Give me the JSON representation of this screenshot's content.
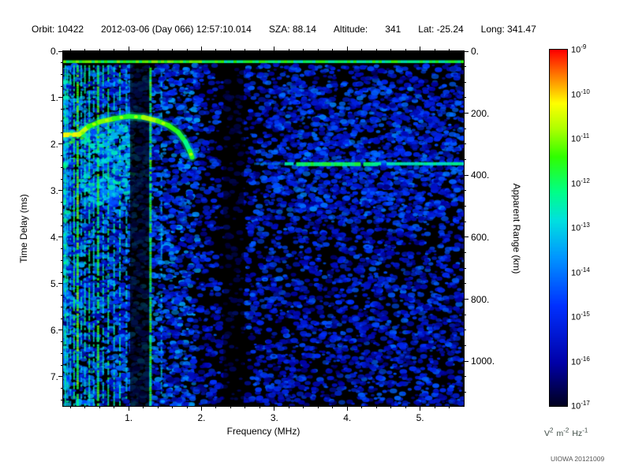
{
  "header": {
    "fields": [
      {
        "text": "Orbit: 10422"
      },
      {
        "text": "2012-03-06 (Day 066) 12:57:10.014"
      },
      {
        "text": "SZA: 88.14"
      },
      {
        "text": "Altitude:"
      },
      {
        "text": "341"
      },
      {
        "text": "Lat: -25.24"
      },
      {
        "text": "Long: 341.47"
      }
    ]
  },
  "axes": {
    "x": {
      "label": "Frequency (MHz)",
      "min": 0.1,
      "max": 5.6,
      "ticks": [
        1,
        2,
        3,
        4,
        5
      ],
      "tick_labels": [
        "1.",
        "2.",
        "3.",
        "4.",
        "5."
      ],
      "minor_step": 0.2
    },
    "y_left": {
      "label": "Time Delay (ms)",
      "min": 0,
      "max": 7.63,
      "ticks": [
        0,
        1,
        2,
        3,
        4,
        5,
        6,
        7
      ],
      "tick_labels": [
        "0.",
        "1.",
        "2.",
        "3.",
        "4.",
        "5.",
        "6.",
        "7."
      ],
      "minor_step": 0.25
    },
    "y_right": {
      "label": "Apparent Range (km)",
      "km_per_ms": 150,
      "ticks_km": [
        0,
        200,
        400,
        600,
        800,
        1000
      ],
      "tick_labels": [
        "0.",
        "200.",
        "400.",
        "600.",
        "800.",
        "1000."
      ],
      "minor_step_km": 50
    }
  },
  "colorbar": {
    "base": "10",
    "exponents": [
      -9,
      -10,
      -11,
      -12,
      -13,
      -14,
      -15,
      -16,
      -17
    ],
    "units": [
      [
        "V",
        "2"
      ],
      [
        "m",
        "-2"
      ],
      [
        "Hz",
        "-1"
      ]
    ],
    "colormap": [
      [
        0.0,
        "#000020"
      ],
      [
        0.12,
        "#0000A8"
      ],
      [
        0.28,
        "#0030FF"
      ],
      [
        0.42,
        "#0098FF"
      ],
      [
        0.52,
        "#00E0E0"
      ],
      [
        0.6,
        "#00FF88"
      ],
      [
        0.7,
        "#30FF00"
      ],
      [
        0.78,
        "#B0FF00"
      ],
      [
        0.85,
        "#FFFF00"
      ],
      [
        0.93,
        "#FF7800"
      ],
      [
        1.0,
        "#FF0000"
      ]
    ]
  },
  "footer": {
    "watermark": "UIOWA 20121009"
  },
  "chart_data": {
    "type": "heatmap",
    "description": "Radar sounder ionogram: received spectral density vs frequency and time delay",
    "x_label": "Frequency (MHz)",
    "x_range_mhz": [
      0.1,
      5.6
    ],
    "y_label": "Time Delay (ms)",
    "y_range_ms": [
      0,
      7.63
    ],
    "z_label": "V^2 m^-2 Hz^-1",
    "z_range_exp": [
      -17,
      -9
    ],
    "features": {
      "transmit_pulse": {
        "delay_ms": 0.22,
        "f_start": 0.1,
        "f_end": 5.6,
        "intensity": 0.62
      },
      "ionospheric_trace": {
        "intensity": 0.72,
        "points_f_ms": [
          [
            0.1,
            1.8
          ],
          [
            0.32,
            1.79
          ],
          [
            0.45,
            1.62
          ],
          [
            0.6,
            1.52
          ],
          [
            0.8,
            1.45
          ],
          [
            1.0,
            1.4
          ],
          [
            1.2,
            1.42
          ],
          [
            1.4,
            1.5
          ],
          [
            1.55,
            1.6
          ],
          [
            1.68,
            1.74
          ],
          [
            1.78,
            1.95
          ],
          [
            1.84,
            2.15
          ],
          [
            1.87,
            2.28
          ]
        ]
      },
      "surface_reflection": {
        "delay_ms": 2.42,
        "f_start": 3.1,
        "f_end": 5.6,
        "faint_start": 2.72,
        "intensity": 0.56
      },
      "stripes": [
        [
          0.13,
          0.55,
          0.85,
          2
        ],
        [
          0.16,
          0.5,
          0.7,
          2
        ],
        [
          0.2,
          0.48,
          0.6,
          2
        ],
        [
          0.25,
          0.62,
          0.8,
          2
        ],
        [
          0.3,
          0.68,
          0.85,
          3
        ],
        [
          0.35,
          0.5,
          0.6,
          2
        ],
        [
          0.4,
          0.55,
          0.7,
          2
        ],
        [
          0.46,
          0.6,
          0.75,
          2
        ],
        [
          0.52,
          0.55,
          0.6,
          2
        ],
        [
          0.58,
          0.65,
          0.8,
          3
        ],
        [
          0.65,
          0.55,
          0.6,
          2
        ],
        [
          0.72,
          0.6,
          0.7,
          2
        ],
        [
          0.8,
          0.52,
          0.55,
          2
        ],
        [
          0.88,
          0.58,
          0.6,
          2
        ],
        [
          0.97,
          0.5,
          0.5,
          2
        ],
        [
          1.3,
          0.66,
          0.85,
          3
        ],
        [
          1.45,
          0.45,
          0.4,
          2
        ]
      ],
      "dark_bands": [
        [
          1.02,
          1.28,
          0.7
        ],
        [
          2.3,
          2.58,
          0.55
        ]
      ],
      "noise_regions": [
        {
          "f": [
            0.1,
            0.17
          ],
          "t": [
            0.3,
            7.63
          ],
          "n": 300,
          "i": [
            0.3,
            0.6
          ]
        },
        {
          "f": [
            0.17,
            1.95
          ],
          "t": [
            0.3,
            7.63
          ],
          "n": 3000,
          "i": [
            0.13,
            0.45
          ]
        },
        {
          "f": [
            0.35,
            1.05
          ],
          "t": [
            1.55,
            3.3
          ],
          "n": 350,
          "i": [
            0.3,
            0.58
          ]
        },
        {
          "f": [
            1.95,
            2.25
          ],
          "t": [
            0.3,
            7.63
          ],
          "n": 250,
          "i": [
            0.1,
            0.35
          ]
        },
        {
          "f": [
            2.25,
            2.62
          ],
          "t": [
            0.3,
            7.63
          ],
          "n": 120,
          "i": [
            0.08,
            0.25
          ]
        },
        {
          "f": [
            2.62,
            5.6
          ],
          "t": [
            0.3,
            7.63
          ],
          "n": 2900,
          "i": [
            0.1,
            0.36
          ]
        },
        {
          "f": [
            3.0,
            5.6
          ],
          "t": [
            0.8,
            3.6
          ],
          "n": 700,
          "i": [
            0.15,
            0.4
          ]
        },
        {
          "f": [
            0.1,
            5.6
          ],
          "t": [
            0.25,
            7.63
          ],
          "n": 800,
          "i": [
            0.08,
            0.2
          ]
        }
      ]
    }
  }
}
